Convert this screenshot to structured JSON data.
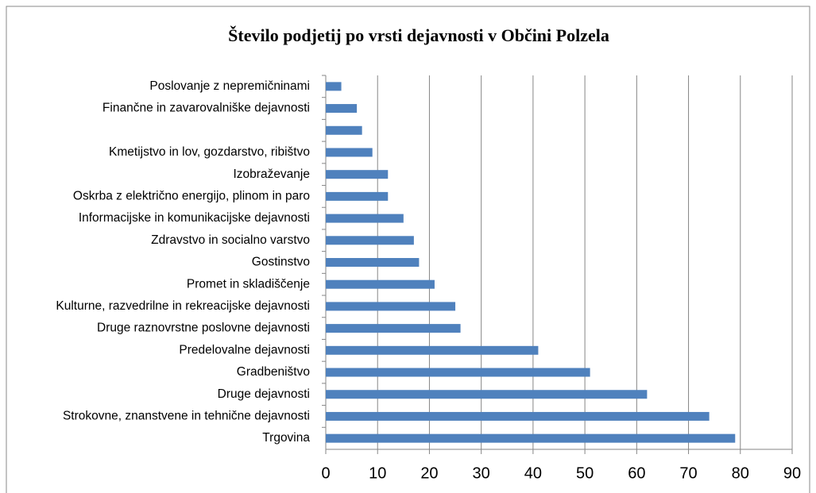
{
  "chart_data": {
    "type": "barh",
    "title": "Število podjetij po vrsti dejavnosti v Občini Polzela",
    "categories": [
      "Poslovanje z nepremičninami",
      "Finančne in zavarovalniške dejavnosti",
      null,
      "Kmetijstvo in lov, gozdarstvo, ribištvo",
      "Izobraževanje",
      "Oskrba z električno energijo, plinom in paro",
      "Informacijske in komunikacijske dejavnosti",
      "Zdravstvo in socialno varstvo",
      "Gostinstvo",
      "Promet in skladiščenje",
      "Kulturne, razvedrilne in rekreacijske dejavnosti",
      "Druge raznovrstne poslovne dejavnosti",
      "Predelovalne dejavnosti",
      "Gradbeništvo",
      "Druge dejavnosti",
      "Strokovne, znanstvene in tehnične dejavnosti",
      "Trgovina"
    ],
    "values": [
      3,
      6,
      7,
      9,
      12,
      12,
      15,
      17,
      18,
      21,
      25,
      26,
      41,
      51,
      62,
      74,
      79
    ],
    "color": "#4f81bd",
    "xlim": [
      0,
      90
    ],
    "xticks": [
      0,
      10,
      20,
      30,
      40,
      50,
      60,
      70,
      80,
      90
    ],
    "grid": true
  }
}
